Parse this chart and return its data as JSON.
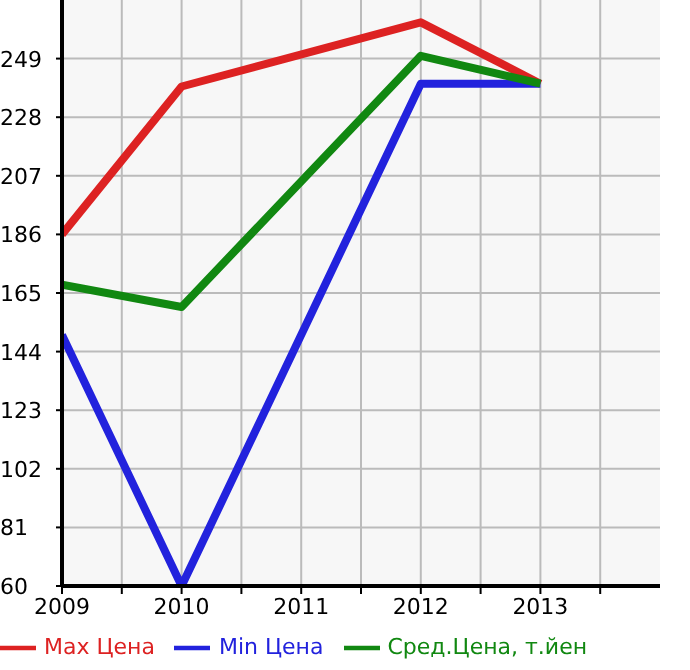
{
  "chart_data": {
    "type": "line",
    "x": [
      2009,
      2010,
      2012,
      2013
    ],
    "series": [
      {
        "name": "Max Цена",
        "color": "#dd2222",
        "values": [
          186,
          239,
          262,
          240
        ]
      },
      {
        "name": "Min Цена",
        "color": "#2222dd",
        "values": [
          150,
          60,
          240,
          240
        ]
      },
      {
        "name": "Сред.Цена, т.йен",
        "color": "#118811",
        "values": [
          168,
          160,
          250,
          240
        ]
      }
    ],
    "xlim": [
      2009,
      2014
    ],
    "xticks": [
      2009,
      {
        "value": 2009.5,
        "label": null
      },
      2010,
      {
        "value": 2010.5,
        "label": null
      },
      2011,
      {
        "value": 2011.5,
        "label": null
      },
      2012,
      {
        "value": 2012.5,
        "label": null
      },
      2013,
      {
        "value": 2013.5,
        "label": null
      }
    ],
    "ylim": [
      60,
      270
    ],
    "yticks": [
      60,
      81,
      102,
      123,
      144,
      165,
      186,
      207,
      228,
      249
    ],
    "grid": true,
    "legend": "bottom"
  }
}
